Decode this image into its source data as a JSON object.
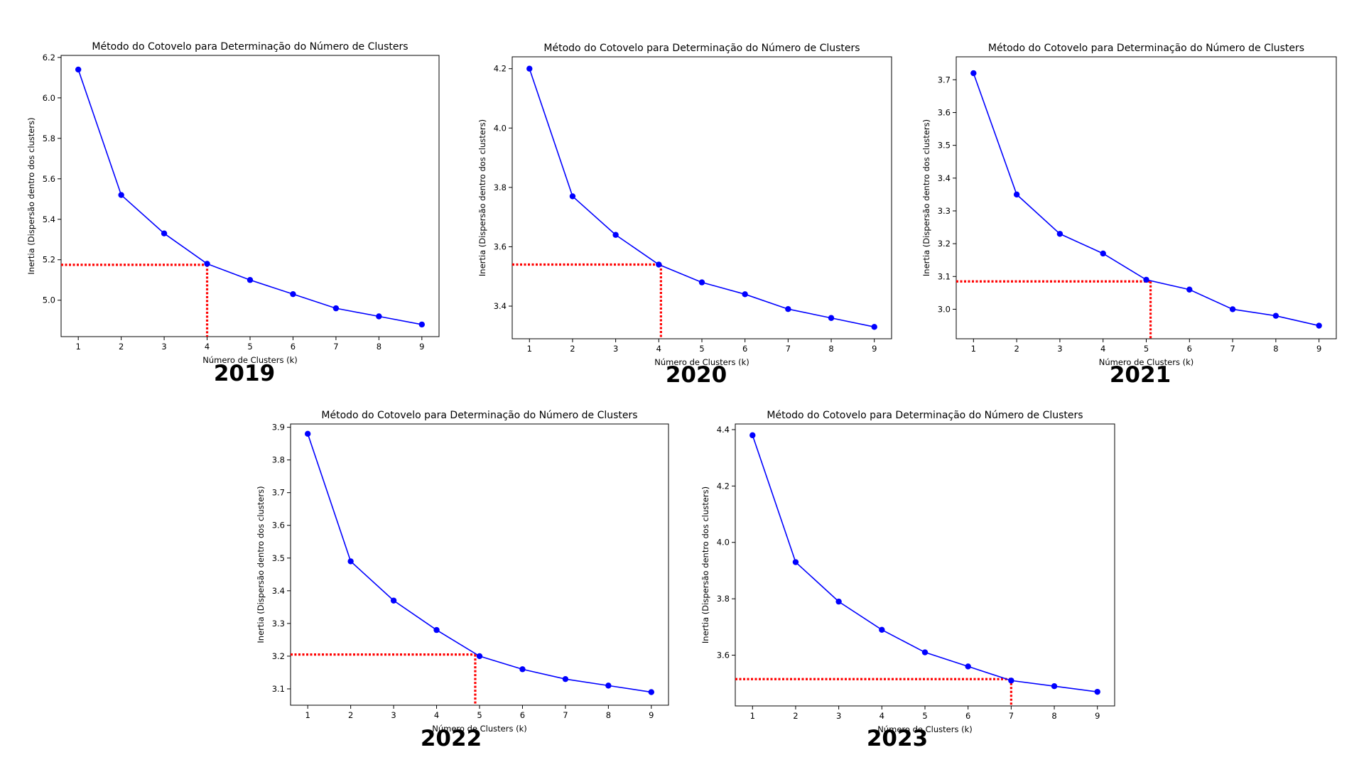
{
  "theme": {
    "line_color": "#0000ff",
    "marker_color": "#0000ff",
    "elbow_color": "#ff0000",
    "axes_color": "#000000",
    "background": "#ffffff"
  },
  "chart_data": [
    {
      "type": "line",
      "title": "Método do Cotovelo para Determinação do Número de Clusters",
      "xlabel": "Número de Clusters (k)",
      "ylabel": "Inertia (Dispersão dentro dos clusters)",
      "caption": "2019",
      "x": [
        1,
        2,
        3,
        4,
        5,
        6,
        7,
        8,
        9
      ],
      "values": [
        6.14,
        5.52,
        5.33,
        5.18,
        5.1,
        5.03,
        4.96,
        4.92,
        4.88
      ],
      "xlim": [
        0.6,
        9.4
      ],
      "ylim": [
        4.82,
        6.21
      ],
      "yticks": [
        "5.0",
        "5.2",
        "5.4",
        "5.6",
        "5.8",
        "6.0",
        "6.2"
      ],
      "ytick_values": [
        5.0,
        5.2,
        5.4,
        5.6,
        5.8,
        6.0,
        6.2
      ],
      "xticks": [
        "1",
        "2",
        "3",
        "4",
        "5",
        "6",
        "7",
        "8",
        "9"
      ],
      "elbow": {
        "x": 4.0,
        "y": 5.175
      },
      "marker": "o",
      "grid": false
    },
    {
      "type": "line",
      "title": "Método do Cotovelo para Determinação do Número de Clusters",
      "xlabel": "Número de Clusters (k)",
      "ylabel": "Inertia (Dispersão dentro dos clusters)",
      "caption": "2020",
      "x": [
        1,
        2,
        3,
        4,
        5,
        6,
        7,
        8,
        9
      ],
      "values": [
        4.2,
        3.77,
        3.64,
        3.54,
        3.48,
        3.44,
        3.39,
        3.36,
        3.33
      ],
      "xlim": [
        0.6,
        9.4
      ],
      "ylim": [
        3.29,
        4.24
      ],
      "yticks": [
        "3.4",
        "3.6",
        "3.8",
        "4.0",
        "4.2"
      ],
      "ytick_values": [
        3.4,
        3.6,
        3.8,
        4.0,
        4.2
      ],
      "xticks": [
        "1",
        "2",
        "3",
        "4",
        "5",
        "6",
        "7",
        "8",
        "9"
      ],
      "elbow": {
        "x": 4.05,
        "y": 3.54
      },
      "marker": "o",
      "grid": false
    },
    {
      "type": "line",
      "title": "Método do Cotovelo para Determinação do Número de Clusters",
      "xlabel": "Número de Clusters (k)",
      "ylabel": "Inertia (Dispersão dentro dos clusters)",
      "caption": "2021",
      "x": [
        1,
        2,
        3,
        4,
        5,
        6,
        7,
        8,
        9
      ],
      "values": [
        3.72,
        3.35,
        3.23,
        3.17,
        3.09,
        3.06,
        3.0,
        2.98,
        2.95
      ],
      "xlim": [
        0.6,
        9.4
      ],
      "ylim": [
        2.91,
        3.77
      ],
      "yticks": [
        "3.0",
        "3.1",
        "3.2",
        "3.3",
        "3.4",
        "3.5",
        "3.6",
        "3.7"
      ],
      "ytick_values": [
        3.0,
        3.1,
        3.2,
        3.3,
        3.4,
        3.5,
        3.6,
        3.7
      ],
      "xticks": [
        "1",
        "2",
        "3",
        "4",
        "5",
        "6",
        "7",
        "8",
        "9"
      ],
      "elbow": {
        "x": 5.1,
        "y": 3.085
      },
      "marker": "o",
      "grid": false
    },
    {
      "type": "line",
      "title": "Método do Cotovelo para Determinação do Número de Clusters",
      "xlabel": "Número de Clusters (k)",
      "ylabel": "Inertia (Dispersão dentro dos clusters)",
      "caption": "2022",
      "x": [
        1,
        2,
        3,
        4,
        5,
        6,
        7,
        8,
        9
      ],
      "values": [
        3.88,
        3.49,
        3.37,
        3.28,
        3.2,
        3.16,
        3.13,
        3.11,
        3.09
      ],
      "xlim": [
        0.6,
        9.4
      ],
      "ylim": [
        3.05,
        3.91
      ],
      "yticks": [
        "3.1",
        "3.2",
        "3.3",
        "3.4",
        "3.5",
        "3.6",
        "3.7",
        "3.8",
        "3.9"
      ],
      "ytick_values": [
        3.1,
        3.2,
        3.3,
        3.4,
        3.5,
        3.6,
        3.7,
        3.8,
        3.9
      ],
      "xticks": [
        "1",
        "2",
        "3",
        "4",
        "5",
        "6",
        "7",
        "8",
        "9"
      ],
      "elbow": {
        "x": 4.9,
        "y": 3.205
      },
      "marker": "o",
      "grid": false
    },
    {
      "type": "line",
      "title": "Método do Cotovelo para Determinação do Número de Clusters",
      "xlabel": "Número de Clusters (k)",
      "ylabel": "Inertia (Dispersão dentro dos clusters)",
      "caption": "2023",
      "x": [
        1,
        2,
        3,
        4,
        5,
        6,
        7,
        8,
        9
      ],
      "values": [
        4.38,
        3.93,
        3.79,
        3.69,
        3.61,
        3.56,
        3.51,
        3.49,
        3.47
      ],
      "xlim": [
        0.6,
        9.4
      ],
      "ylim": [
        3.42,
        4.42
      ],
      "yticks": [
        "3.6",
        "3.8",
        "4.0",
        "4.2",
        "4.4"
      ],
      "ytick_values": [
        3.6,
        3.8,
        4.0,
        4.2,
        4.4
      ],
      "xticks": [
        "1",
        "2",
        "3",
        "4",
        "5",
        "6",
        "7",
        "8",
        "9"
      ],
      "elbow": {
        "x": 7.0,
        "y": 3.515
      },
      "marker": "o",
      "grid": false
    }
  ]
}
